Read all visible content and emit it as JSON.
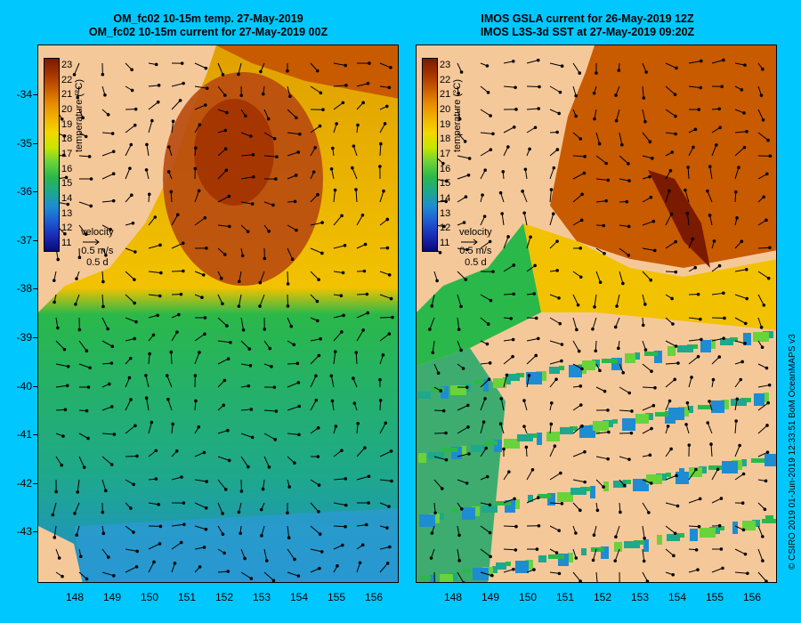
{
  "left_panel": {
    "title_line1": "OM_fc02 10-15m temp. 27-May-2019",
    "title_line2": "OM_fc02 10-15m current for 27-May-2019 00Z",
    "colorbar_title": "temperature (°C)",
    "velocity_label": "velocity",
    "velocity_scale": "0.5 m/s",
    "velocity_time": "0.5 d"
  },
  "right_panel": {
    "title_line1": "IMOS GSLA current for 26-May-2019 12Z",
    "title_line2": "IMOS L3S-3d SST at 27-May-2019 09:20Z",
    "colorbar_title": "temperature (°C)",
    "velocity_label": "velocity",
    "velocity_scale": "0.5 m/s",
    "velocity_time": "0.5 d"
  },
  "colorbar_ticks": [
    "23",
    "22",
    "21",
    "20",
    "19",
    "18",
    "17",
    "16",
    "15",
    "14",
    "13",
    "12",
    "11"
  ],
  "colorbar_colors": [
    "#7a1a00",
    "#a33300",
    "#c85a00",
    "#e68a00",
    "#f2b200",
    "#f2d700",
    "#c8e600",
    "#6ad23a",
    "#2ab84a",
    "#1ea88c",
    "#1e8cd2",
    "#1e5ad2",
    "#1a2ab4",
    "#0a0a78"
  ],
  "lat_ticks": [
    "-34",
    "-35",
    "-36",
    "-37",
    "-38",
    "-39",
    "-40",
    "-41",
    "-42",
    "-43"
  ],
  "lon_ticks": [
    "148",
    "149",
    "150",
    "151",
    "152",
    "153",
    "154",
    "155",
    "156"
  ],
  "credit": "© CSIRO 2019   01-Jun-2019 12:33:51 BoM OceanMAPS v3",
  "colors": {
    "background": "#00c8ff",
    "land": "#f5c89a",
    "warm": "#b84a10",
    "mid": "#f2c200",
    "cool": "#2ab84a",
    "cold": "#1e8cd2"
  }
}
